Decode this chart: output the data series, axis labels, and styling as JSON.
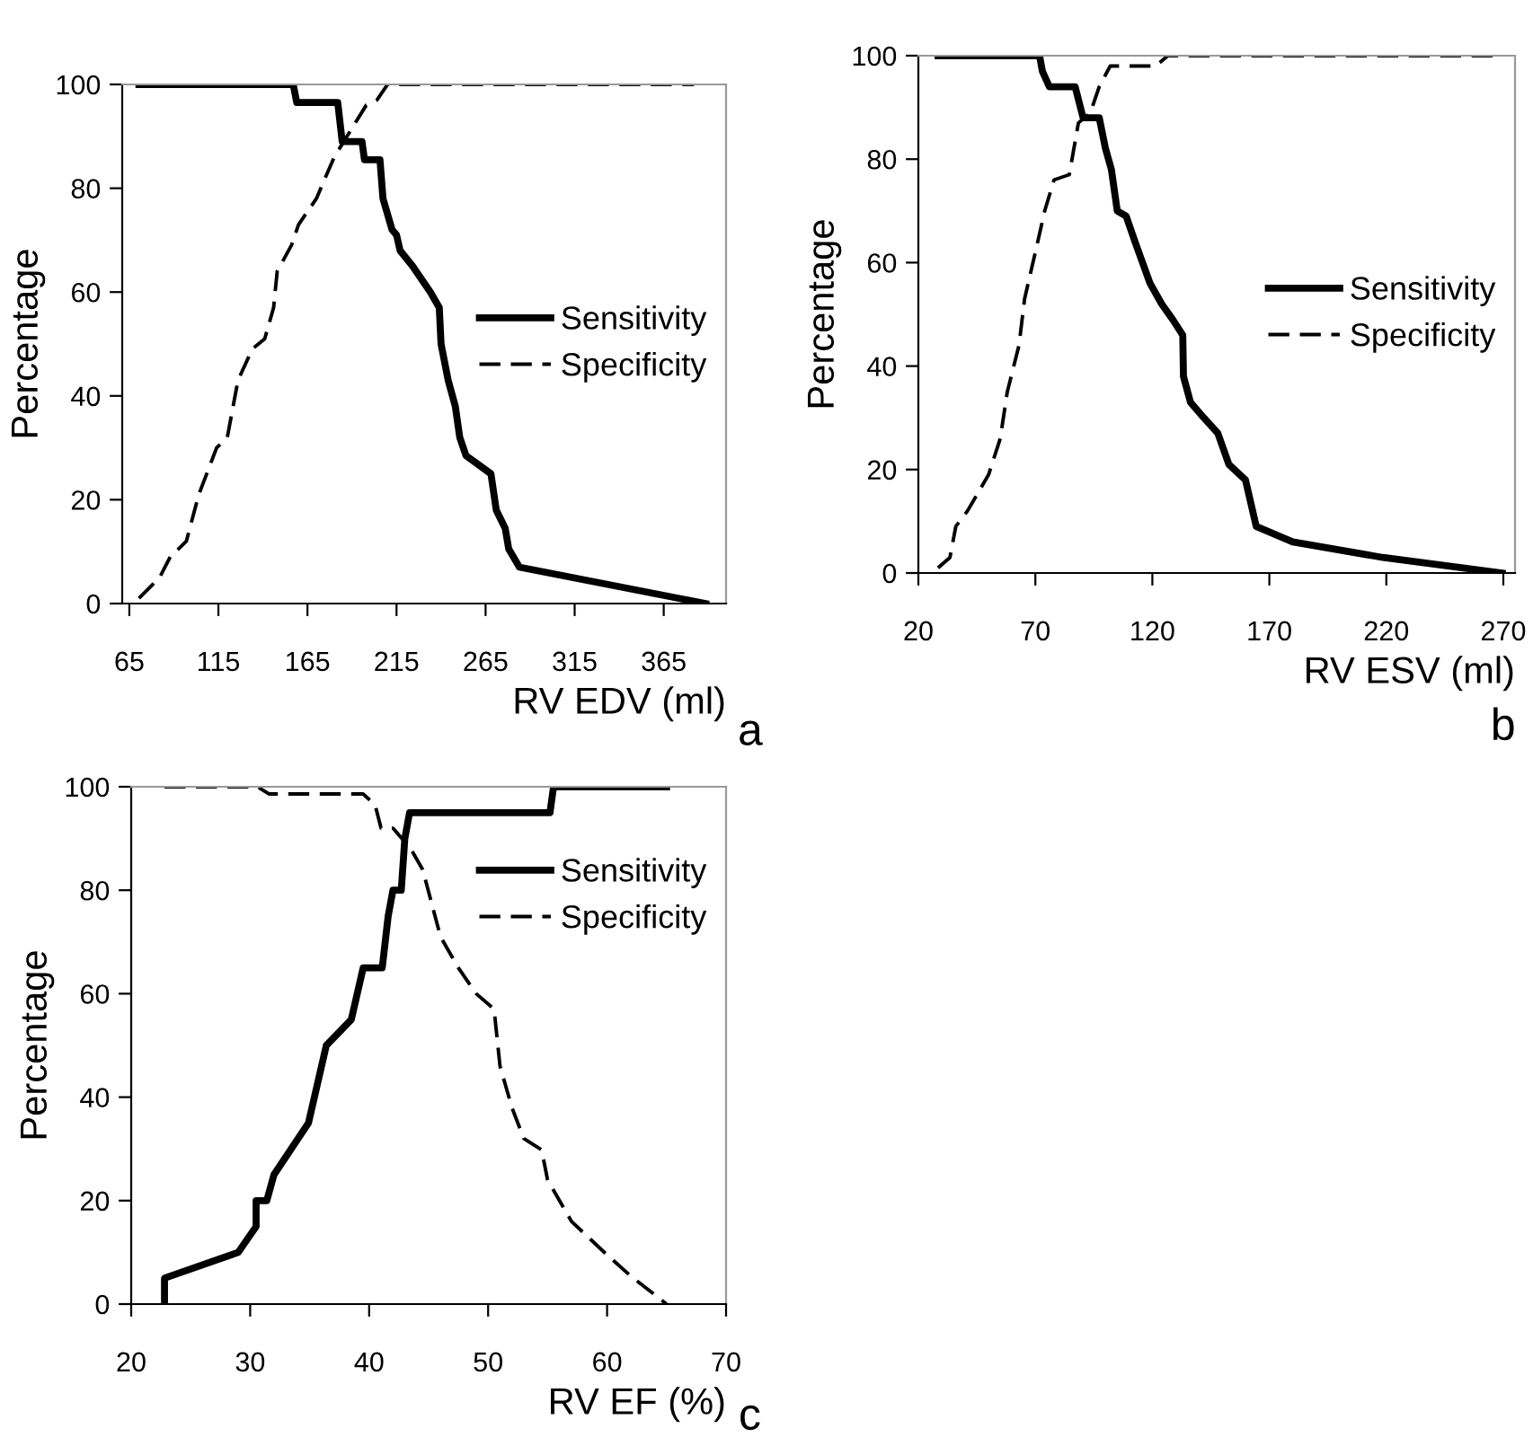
{
  "chart_data": [
    {
      "type": "line",
      "xlabel": "RV EDV (ml)",
      "ylabel": "Percentage",
      "annotations": [
        "a"
      ],
      "xlim": [
        61,
        400
      ],
      "xticks": [
        65,
        115,
        165,
        215,
        265,
        315,
        365
      ],
      "ylim": [
        0,
        100
      ],
      "yticks": [
        0,
        20,
        40,
        60,
        80,
        100
      ],
      "grid": false,
      "legend": "right",
      "marker": "none",
      "series": [
        {
          "name": "Sensitivity",
          "color": "#000000",
          "line_style": "solid",
          "x": [
            70.4,
            157,
            159,
            182,
            184.5,
            195.6,
            197,
            205.7,
            207.4,
            212.5,
            215,
            217,
            224,
            234,
            239,
            240,
            244,
            248,
            250.5,
            254,
            268,
            271,
            276,
            278,
            284,
            388.5
          ],
          "values": [
            100,
            100,
            96.5,
            96.5,
            89,
            89,
            85.5,
            85.5,
            78,
            72,
            71,
            68,
            65,
            60,
            57,
            50,
            43,
            38,
            32,
            28.5,
            25,
            18,
            14.5,
            10.5,
            7,
            0
          ]
        },
        {
          "name": "Specificity",
          "color": "#000000",
          "line_style": "dashed",
          "x": [
            70.4,
            82,
            88,
            97,
            104,
            114,
            120,
            126,
            134,
            141,
            146,
            148,
            156,
            160,
            170,
            180,
            189,
            198,
            204,
            210,
            382
          ],
          "values": [
            1,
            5,
            9,
            12,
            21,
            30,
            32,
            43,
            49,
            51,
            57,
            64,
            69,
            73,
            78,
            86,
            91,
            96,
            97,
            100,
            100
          ]
        }
      ]
    },
    {
      "type": "line",
      "xlabel": "RV ESV (ml)",
      "ylabel": "Percentage",
      "annotations": [
        "b"
      ],
      "xlim": [
        20,
        275
      ],
      "xticks": [
        20,
        70,
        120,
        170,
        220,
        270
      ],
      "ylim": [
        0,
        100
      ],
      "yticks": [
        0,
        20,
        40,
        60,
        80,
        100
      ],
      "grid": false,
      "legend": "right",
      "marker": "none",
      "series": [
        {
          "name": "Sensitivity",
          "color": "#000000",
          "line_style": "solid",
          "x": [
            28.4,
            71.8,
            73,
            76,
            87,
            90.4,
            97.3,
            100,
            102.5,
            105,
            108.8,
            112.6,
            119,
            124,
            128.7,
            133,
            133.3,
            136.3,
            142,
            148,
            152.7,
            159.8,
            164.4,
            180,
            218.5,
            269.5
          ],
          "values": [
            100,
            100,
            97,
            94,
            94,
            88,
            88,
            82,
            78,
            70,
            69,
            64,
            56,
            52,
            49,
            46,
            38,
            33,
            30,
            27,
            21,
            18,
            9,
            6,
            3,
            0
          ]
        },
        {
          "name": "Specificity",
          "color": "#000000",
          "line_style": "dashed",
          "x": [
            28.4,
            33.5,
            36,
            41,
            50,
            55,
            58,
            63,
            65.4,
            70.5,
            74,
            78,
            84.5,
            88.4,
            93.5,
            97.3,
            102,
            121.5,
            126.6,
            265.6
          ],
          "values": [
            1,
            3,
            9,
            12,
            19,
            26,
            35,
            44,
            53,
            63,
            70,
            76,
            77,
            87,
            89,
            94,
            98,
            98,
            100,
            100
          ]
        }
      ]
    },
    {
      "type": "line",
      "xlabel": "RV EF (%)",
      "ylabel": "Percentage",
      "annotations": [
        "c"
      ],
      "xlim": [
        20,
        70
      ],
      "xticks": [
        20,
        30,
        40,
        50,
        60,
        70
      ],
      "ylim": [
        0,
        100
      ],
      "yticks": [
        0,
        20,
        40,
        60,
        80,
        100
      ],
      "grid": false,
      "legend": "top right",
      "marker": "none",
      "series": [
        {
          "name": "Sensitivity",
          "color": "#000000",
          "line_style": "solid",
          "x": [
            22.8,
            22.8,
            29,
            30.5,
            30.5,
            31.4,
            32,
            34.9,
            36.4,
            38.5,
            39,
            39.5,
            41.1,
            41.6,
            42,
            42.7,
            43,
            43.4,
            55.2,
            55.5,
            65
          ],
          "values": [
            0,
            5,
            10,
            15,
            20,
            20,
            25,
            35,
            50,
            55,
            60,
            65,
            65,
            75,
            80,
            80,
            90,
            95,
            95,
            100,
            100
          ]
        },
        {
          "name": "Specificity",
          "color": "#000000",
          "line_style": "dashed",
          "x": [
            22.8,
            30.6,
            31.6,
            39.5,
            40.5,
            41,
            42,
            43.5,
            44.5,
            46,
            47.5,
            49,
            50.5,
            51,
            52,
            53,
            54.5,
            55,
            57,
            60,
            62,
            65
          ],
          "values": [
            100,
            100,
            98.6,
            98.6,
            96.5,
            92,
            92,
            88,
            84,
            71,
            65,
            60,
            57,
            46,
            38,
            32,
            29.8,
            24,
            16,
            9.5,
            5.4,
            0
          ]
        }
      ]
    }
  ]
}
